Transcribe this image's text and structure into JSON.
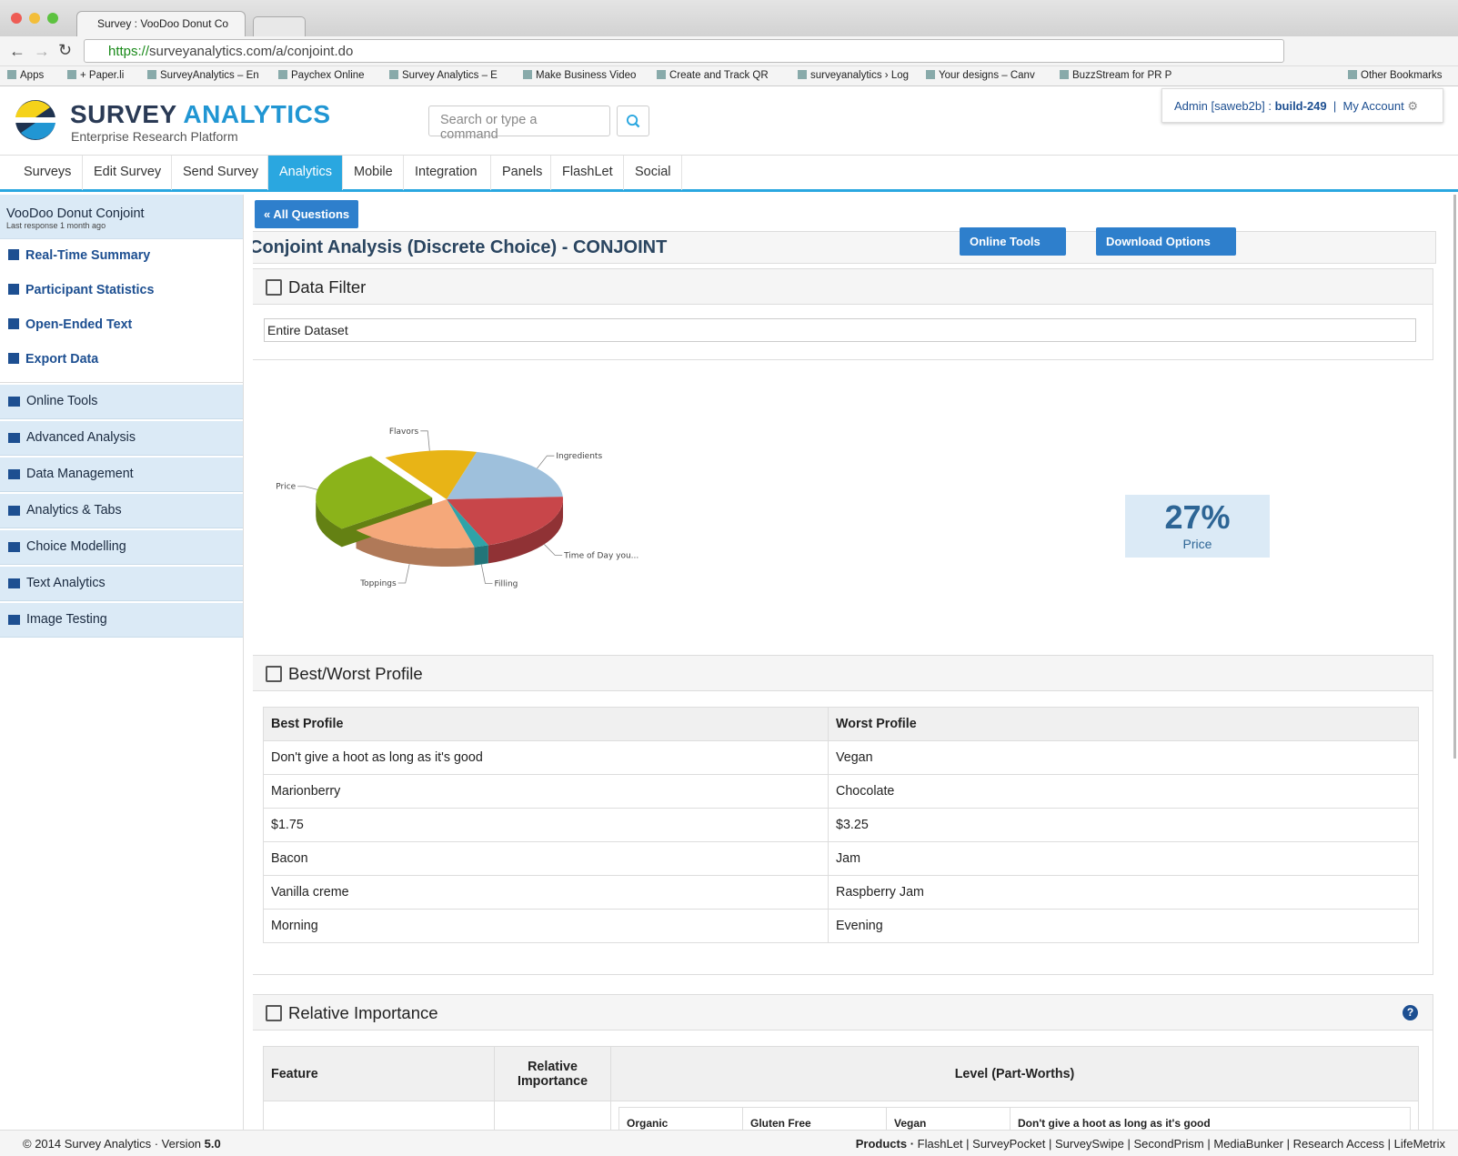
{
  "browser": {
    "tab_title": "Survey : VooDoo Donut Co",
    "url_scheme": "https://",
    "url_rest": "surveyanalytics.com/a/conjoint.do",
    "bookmarks": [
      "Apps",
      "+ Paper.li",
      "SurveyAnalytics – En",
      "Paychex Online",
      "Survey Analytics – E",
      "Make Business Video",
      "Create and Track QR",
      "surveyanalytics › Log",
      "Your designs – Canv",
      "BuzzStream for PR P"
    ],
    "other_bookmarks": "Other Bookmarks"
  },
  "header": {
    "logo_word_1": "SURVEY",
    "logo_word_2": "ANALYTICS",
    "logo_subtitle": "Enterprise Research Platform",
    "search_placeholder": "Search or type a command",
    "admin": "Admin [saweb2b] :",
    "build": "build-249",
    "account": "My Account"
  },
  "nav": {
    "tabs": [
      "Surveys",
      "Edit Survey",
      "Send Survey",
      "Analytics",
      "Mobile",
      "Integration",
      "Panels",
      "FlashLet",
      "Social"
    ],
    "active": 3
  },
  "sidebar": {
    "survey_title": "VooDoo Donut Conjoint",
    "last_response": "Last response 1 month ago",
    "links": [
      "Real-Time Summary",
      "Participant Statistics",
      "Open-Ended Text",
      "Export Data"
    ],
    "sections": [
      "Online Tools",
      "Advanced Analysis",
      "Data Management",
      "Analytics & Tabs",
      "Choice Modelling",
      "Text Analytics",
      "Image Testing"
    ]
  },
  "main": {
    "all_questions": "« All Questions",
    "page_title": "Conjoint Analysis (Discrete Choice) - CONJOINT",
    "buttons": [
      "Online Tools",
      "Download Options"
    ],
    "data_filter": {
      "title": "Data Filter",
      "value": "Entire Dataset"
    },
    "best_worst": {
      "title": "Best/Worst Profile",
      "headers": [
        "Best Profile",
        "Worst Profile"
      ],
      "rows": [
        [
          "Don't give a hoot as long as it's good",
          "Vegan"
        ],
        [
          "Marionberry",
          "Chocolate"
        ],
        [
          "$1.75",
          "$3.25"
        ],
        [
          "Bacon",
          "Jam"
        ],
        [
          "Vanilla creme",
          "Raspberry Jam"
        ],
        [
          "Morning",
          "Evening"
        ]
      ]
    },
    "relative_importance": {
      "title": "Relative Importance",
      "headers": [
        "Feature",
        "Relative Importance",
        "Level (Part-Worths)"
      ],
      "sub_headers": [
        "Organic",
        "Gluten Free",
        "Vegan",
        "Don't give a hoot as long as it's good"
      ]
    }
  },
  "chart_data": {
    "type": "pie",
    "categories": [
      "Ingredients",
      "Time of Day you...",
      "Filling",
      "Toppings",
      "Price",
      "Flavors"
    ],
    "values": [
      20,
      20,
      2,
      18,
      27,
      13
    ],
    "colors": [
      "#9ec0dc",
      "#c8464a",
      "#2fa3a8",
      "#f5a87a",
      "#8bb31a",
      "#e8b416"
    ],
    "exploded": 4,
    "highlight": {
      "value": "27%",
      "label": "Price"
    }
  },
  "footer": {
    "copyright": "© 2014 Survey Analytics ·",
    "version_label": "Version",
    "version": "5.0",
    "products": "Products ·",
    "links": [
      "FlashLet",
      "SurveyPocket",
      "SurveySwipe",
      "SecondPrism",
      "MediaBunker",
      "Research Access",
      "LifeMetrix"
    ]
  }
}
